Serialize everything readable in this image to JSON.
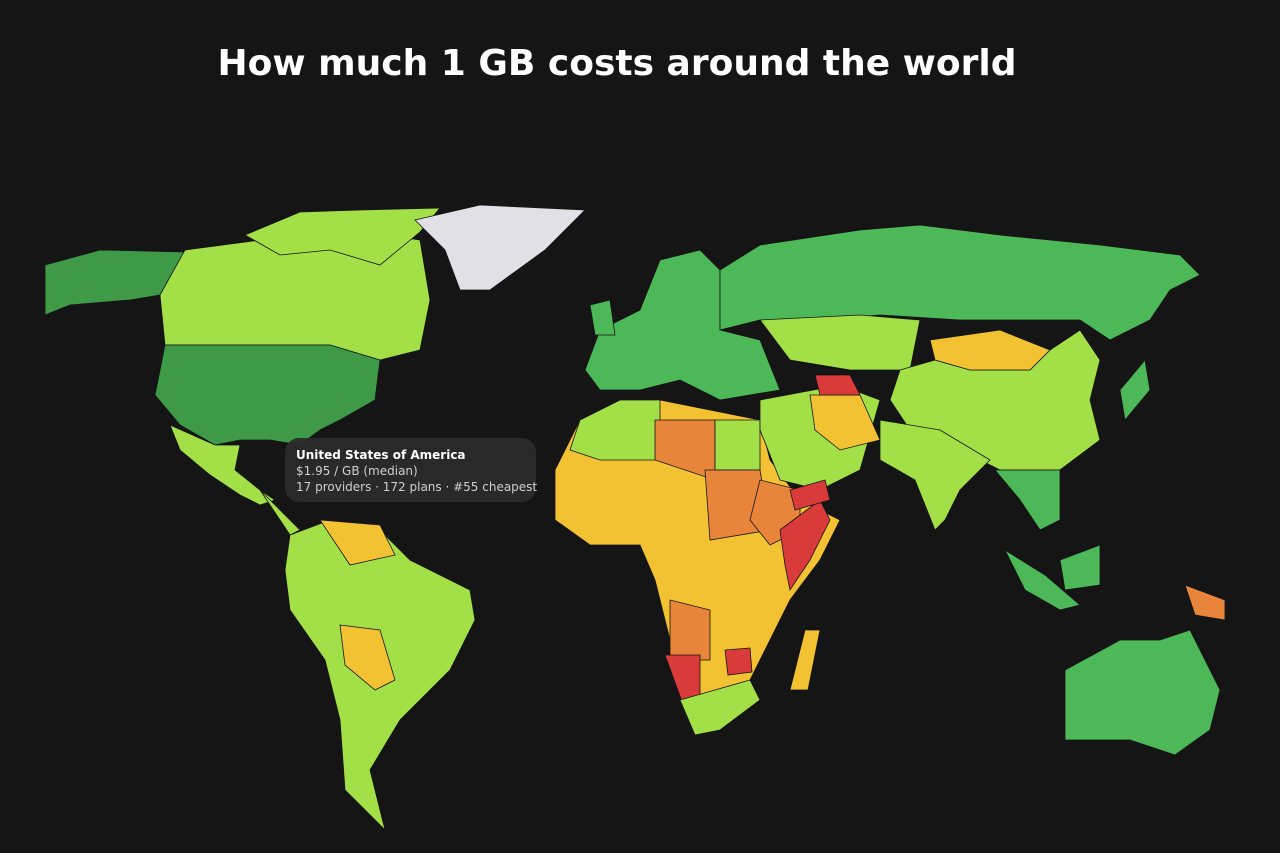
{
  "header": {
    "title": "How much 1 GB costs around the world"
  },
  "tooltip": {
    "country": "United States of America",
    "price": "$1.95 / GB (median)",
    "stats": "17 providers · 172 plans · #55 cheapest"
  }
}
